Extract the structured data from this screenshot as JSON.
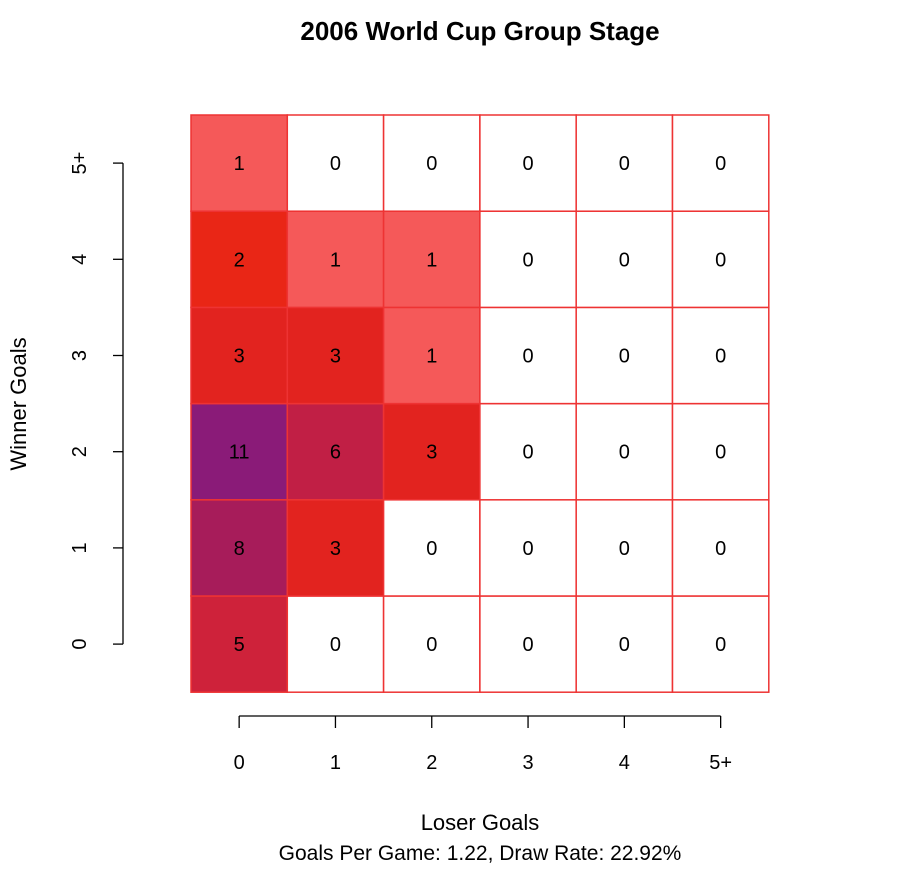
{
  "chart_data": {
    "type": "heatmap",
    "title": "2006 World Cup Group Stage",
    "xlabel": "Loser Goals",
    "ylabel": "Winner Goals",
    "subtitle": "Goals Per Game: 1.22, Draw Rate: 22.92%",
    "x_categories": [
      "0",
      "1",
      "2",
      "3",
      "4",
      "5+"
    ],
    "y_categories": [
      "0",
      "1",
      "2",
      "3",
      "4",
      "5+"
    ],
    "values": [
      [
        5,
        0,
        0,
        0,
        0,
        0
      ],
      [
        8,
        3,
        0,
        0,
        0,
        0
      ],
      [
        11,
        6,
        3,
        0,
        0,
        0
      ],
      [
        3,
        3,
        1,
        0,
        0,
        0
      ],
      [
        2,
        1,
        1,
        0,
        0,
        0
      ],
      [
        1,
        0,
        0,
        0,
        0,
        0
      ]
    ],
    "colors": {
      "0": "#ffffff",
      "1": "#f55959",
      "2": "#e92616",
      "3": "#e2231f",
      "5": "#ce223a",
      "6": "#c11f45",
      "8": "#a71c5a",
      "11": "#8a1b78"
    },
    "grid_color": "#ee3333"
  }
}
